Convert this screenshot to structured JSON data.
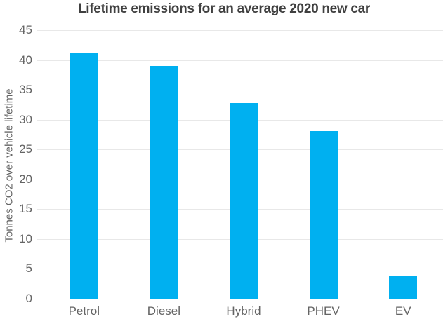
{
  "chart_data": {
    "type": "bar",
    "title": "Lifetime emissions for an average 2020 new car",
    "xlabel": "",
    "ylabel": "Tonnes CO2 over vehicle lifetime",
    "categories": [
      "Petrol",
      "Diesel",
      "Hybrid",
      "PHEV",
      "EV"
    ],
    "values": [
      41.2,
      39.0,
      32.8,
      28.1,
      3.9
    ],
    "ylim": [
      0,
      45
    ],
    "yticks": [
      0,
      5,
      10,
      15,
      20,
      25,
      30,
      35,
      40,
      45
    ],
    "grid": true,
    "legend_position": "none"
  },
  "colors": {
    "bar": "#00b0f0",
    "title_text": "#404040",
    "axis_text": "#646464",
    "gridline": "#e8e8e8",
    "baseline": "#d2d2d2",
    "background": "#ffffff"
  }
}
